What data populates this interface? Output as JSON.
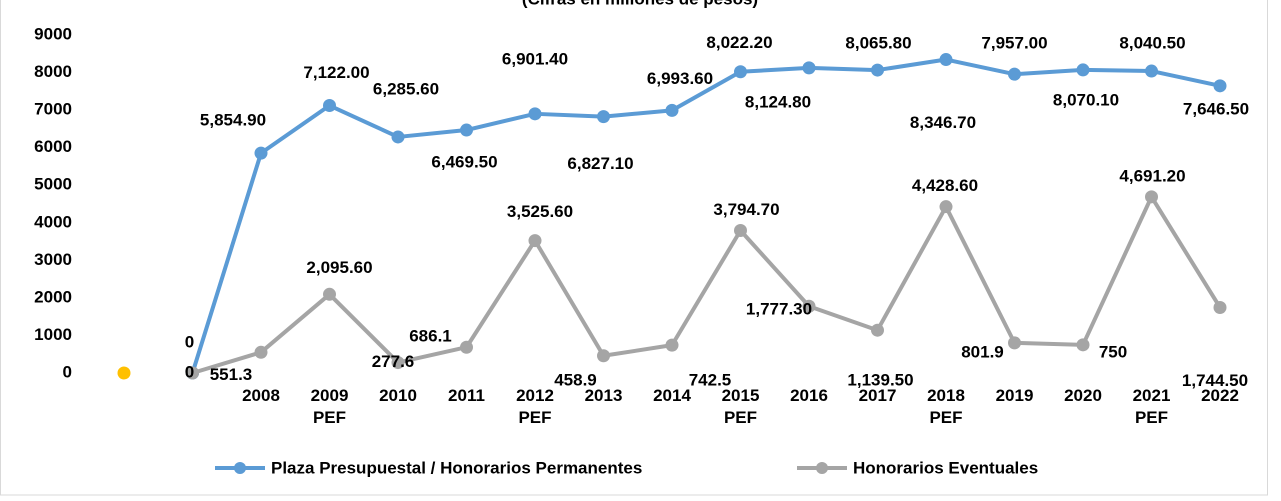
{
  "chart_data": {
    "type": "line",
    "title": "(Cifras en millones de pesos)",
    "categories": [
      null,
      null,
      "2008",
      "2009 PEF",
      "2010",
      "2011",
      "2012 PEF",
      "2013",
      "2014",
      "2015 PEF",
      "2016",
      "2017",
      "2018 PEF",
      "2019",
      "2020",
      "2021 PEF",
      "2022"
    ],
    "series": [
      {
        "name": "Plaza Presupuestal / Honorarios Permanentes",
        "color": "#5b9bd5",
        "values": [
          null,
          0,
          5854.9,
          7122,
          6285.6,
          6469.5,
          6901.4,
          6827.1,
          6993.6,
          8022.2,
          8124.8,
          8065.8,
          8346.7,
          7957,
          8070.1,
          8040.5,
          7646.5
        ],
        "value_labels": [
          null,
          "0",
          "5,854.90",
          "7,122.00",
          "6,285.60",
          "6,469.50",
          "6,901.40",
          "6,827.10",
          "6,993.60",
          "8,022.20",
          "8,124.80",
          "8,065.80",
          "8,346.70",
          "7,957.00",
          "8,070.10",
          "8,040.50",
          "7,646.50"
        ]
      },
      {
        "name": "Honorarios Eventuales",
        "color": "#a5a5a5",
        "values": [
          null,
          0,
          551.3,
          2095.6,
          277.6,
          686.1,
          3525.6,
          458.9,
          742.5,
          3794.7,
          1777.3,
          1139.5,
          4428.6,
          801.9,
          750,
          4691.2,
          1744.5
        ],
        "value_labels": [
          null,
          "0",
          "551.3",
          "2,095.60",
          "277.6",
          "686.1",
          "3,525.60",
          "458.9",
          "742.5",
          "3,794.70",
          "1,777.30",
          "1,139.50",
          "4,428.60",
          "801.9",
          "750",
          "4,691.20",
          "1,744.50"
        ]
      },
      {
        "color": "#ffc000",
        "values": [
          0,
          null,
          null,
          null,
          null,
          null,
          null,
          null,
          null,
          null,
          null,
          null,
          null,
          null,
          null,
          null,
          null
        ]
      }
    ],
    "ylim": [
      0,
      9000
    ],
    "yticks": [
      0,
      1000,
      2000,
      3000,
      4000,
      5000,
      6000,
      7000,
      8000,
      9000
    ],
    "grid": false,
    "legend": "bottom"
  }
}
